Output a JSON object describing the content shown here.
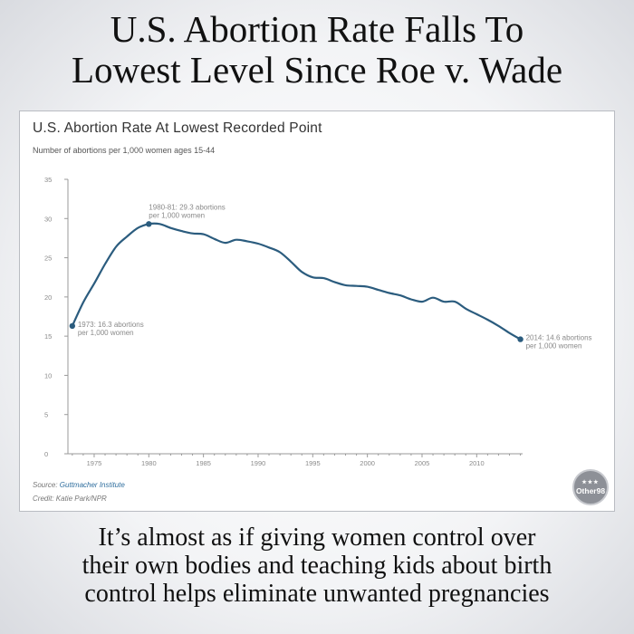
{
  "headline": {
    "line1": "U.S. Abortion Rate Falls To",
    "line2": "Lowest Level Since Roe v. Wade"
  },
  "caption": {
    "line1": "It’s almost as if giving women control over",
    "line2": "their own bodies and teaching kids about birth",
    "line3": "control helps eliminate unwanted pregnancies"
  },
  "source": {
    "label": "Source: ",
    "name": "Guttmacher Institute"
  },
  "credit": "Credit: Katie Park/NPR",
  "watermark": "Other98",
  "colors": {
    "line": "#2b5c7e",
    "axis": "#9a9a9a",
    "text": "#8a8a8a"
  },
  "chart_data": {
    "type": "line",
    "title": "U.S. Abortion Rate At Lowest Recorded Point",
    "subtitle": "Number of abortions per 1,000 women ages 15-44",
    "xlabel": "",
    "ylabel": "",
    "xlim": [
      1972.6,
      2014.2
    ],
    "ylim": [
      0,
      35
    ],
    "yticks": [
      0,
      5,
      10,
      15,
      20,
      25,
      30,
      35
    ],
    "xticks": [
      1975,
      1980,
      1985,
      1990,
      1995,
      2000,
      2005,
      2010
    ],
    "grid": false,
    "x": [
      1973,
      1974,
      1975,
      1976,
      1977,
      1978,
      1979,
      1980,
      1981,
      1982,
      1983,
      1984,
      1985,
      1986,
      1987,
      1988,
      1989,
      1990,
      1991,
      1992,
      1993,
      1994,
      1995,
      1996,
      1997,
      1998,
      1999,
      2000,
      2001,
      2002,
      2003,
      2004,
      2005,
      2006,
      2007,
      2008,
      2009,
      2010,
      2011,
      2012,
      2013,
      2014
    ],
    "values": [
      16.3,
      19.3,
      21.7,
      24.2,
      26.4,
      27.7,
      28.8,
      29.3,
      29.3,
      28.8,
      28.4,
      28.1,
      28.0,
      27.4,
      26.9,
      27.3,
      27.1,
      26.8,
      26.3,
      25.7,
      24.5,
      23.2,
      22.5,
      22.4,
      21.9,
      21.5,
      21.4,
      21.3,
      20.9,
      20.5,
      20.2,
      19.7,
      19.4,
      19.9,
      19.4,
      19.4,
      18.5,
      17.8,
      17.1,
      16.3,
      15.4,
      14.6
    ],
    "annotations": [
      {
        "x": 1973,
        "y": 16.3,
        "line1": "1973: 16.3 abortions",
        "line2": "per 1,000 women"
      },
      {
        "x": 1980,
        "y": 29.3,
        "line1": "1980-81: 29.3 abortions",
        "line2": "per 1,000 women"
      },
      {
        "x": 2014,
        "y": 14.6,
        "line1": "2014: 14.6 abortions",
        "line2": "per 1,000 women"
      }
    ]
  }
}
